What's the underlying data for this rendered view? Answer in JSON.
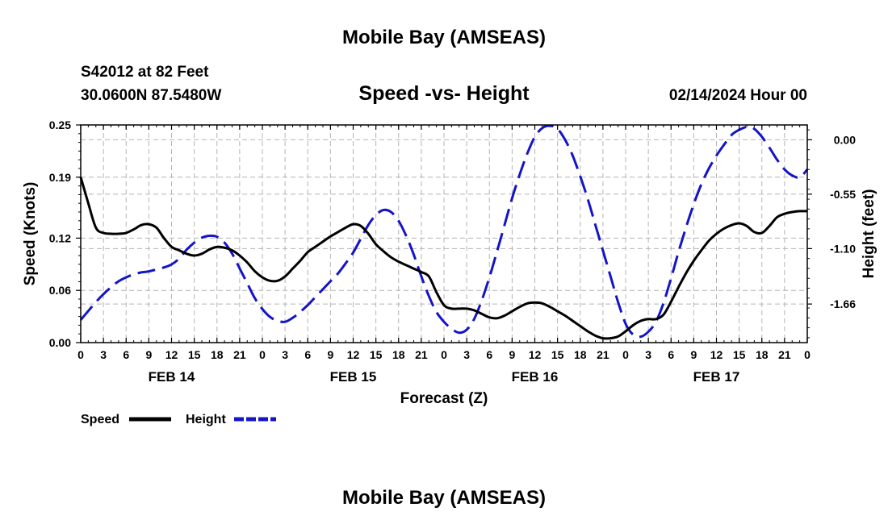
{
  "chart_data": {
    "type": "line",
    "title": "Mobile Bay (AMSEAS)",
    "station": "S42012 at 82 Feet",
    "location": "30.0600N  87.5480W",
    "subtitle": "Speed -vs- Height",
    "run_time": "02/14/2024 Hour 00",
    "xlabel": "Forecast (Z)",
    "ylabel_left": "Speed (Knots)",
    "ylabel_right": "Height (feet)",
    "x_hours_range": [
      0,
      96
    ],
    "x_tick_labels": [
      "0",
      "3",
      "6",
      "9",
      "12",
      "15",
      "18",
      "21",
      "0",
      "3",
      "6",
      "9",
      "12",
      "15",
      "18",
      "21",
      "0",
      "3",
      "6",
      "9",
      "12",
      "15",
      "18",
      "21",
      "0",
      "3",
      "6",
      "9",
      "12",
      "15",
      "18",
      "21",
      "0"
    ],
    "day_labels": [
      {
        "label": "FEB 14",
        "hour": 12
      },
      {
        "label": "FEB 15",
        "hour": 36
      },
      {
        "label": "FEB 16",
        "hour": 60
      },
      {
        "label": "FEB 17",
        "hour": 84
      }
    ],
    "y_left_ticks": [
      "0.00",
      "0.06",
      "0.12",
      "0.19",
      "0.25"
    ],
    "y_left_range": [
      0,
      0.25
    ],
    "y_right_ticks": [
      "0.00",
      "-0.55",
      "-1.10",
      "-1.66"
    ],
    "y_right_range": [
      -2.05,
      0.15
    ],
    "grid": true,
    "legend_position": "bottom-left",
    "series": [
      {
        "name": "Speed",
        "color": "#000000",
        "axis": "left",
        "style": "solid",
        "x": [
          0,
          1,
          2,
          3,
          4,
          5,
          6,
          7,
          8,
          9,
          10,
          11,
          12,
          13,
          14,
          15,
          16,
          17,
          18,
          19,
          20,
          21,
          22,
          23,
          24,
          25,
          26,
          27,
          28,
          29,
          30,
          31,
          32,
          33,
          34,
          35,
          36,
          37,
          38,
          39,
          40,
          41,
          42,
          43,
          44,
          45,
          46,
          47,
          48,
          49,
          50,
          51,
          52,
          53,
          54,
          55,
          56,
          57,
          58,
          59,
          60,
          61,
          62,
          63,
          64,
          65,
          66,
          67,
          68,
          69,
          70,
          71,
          72,
          73,
          74,
          75,
          76,
          77,
          78,
          79,
          80,
          81,
          82,
          83,
          84,
          85,
          86,
          87,
          88,
          89,
          90,
          91,
          92,
          93,
          94,
          95,
          96
        ],
        "y": [
          0.19,
          0.16,
          0.132,
          0.126,
          0.125,
          0.125,
          0.126,
          0.13,
          0.135,
          0.136,
          0.132,
          0.12,
          0.11,
          0.106,
          0.102,
          0.1,
          0.102,
          0.107,
          0.11,
          0.109,
          0.106,
          0.1,
          0.092,
          0.082,
          0.075,
          0.071,
          0.071,
          0.076,
          0.085,
          0.094,
          0.104,
          0.11,
          0.116,
          0.122,
          0.127,
          0.132,
          0.136,
          0.134,
          0.125,
          0.113,
          0.105,
          0.098,
          0.093,
          0.089,
          0.085,
          0.081,
          0.076,
          0.058,
          0.043,
          0.039,
          0.039,
          0.039,
          0.037,
          0.033,
          0.029,
          0.028,
          0.031,
          0.036,
          0.041,
          0.045,
          0.046,
          0.045,
          0.041,
          0.036,
          0.031,
          0.025,
          0.019,
          0.013,
          0.008,
          0.005,
          0.005,
          0.007,
          0.013,
          0.02,
          0.025,
          0.027,
          0.027,
          0.032,
          0.047,
          0.064,
          0.08,
          0.094,
          0.106,
          0.117,
          0.125,
          0.131,
          0.135,
          0.137,
          0.134,
          0.127,
          0.126,
          0.134,
          0.144,
          0.148,
          0.15,
          0.151,
          0.151
        ]
      },
      {
        "name": "Height",
        "color": "#1414c8",
        "axis": "right",
        "style": "dashed",
        "x": [
          0,
          1,
          2,
          3,
          4,
          5,
          6,
          7,
          8,
          9,
          10,
          11,
          12,
          13,
          14,
          15,
          16,
          17,
          18,
          19,
          20,
          21,
          22,
          23,
          24,
          25,
          26,
          27,
          28,
          29,
          30,
          31,
          32,
          33,
          34,
          35,
          36,
          37,
          38,
          39,
          40,
          41,
          42,
          43,
          44,
          45,
          46,
          47,
          48,
          49,
          50,
          51,
          52,
          53,
          54,
          55,
          56,
          57,
          58,
          59,
          60,
          61,
          62,
          63,
          64,
          65,
          66,
          67,
          68,
          69,
          70,
          71,
          72,
          73,
          74,
          75,
          76,
          77,
          78,
          79,
          80,
          81,
          82,
          83,
          84,
          85,
          86,
          87,
          88,
          89,
          90,
          91,
          92,
          93,
          94,
          95,
          96
        ],
        "y": [
          -1.82,
          -1.73,
          -1.64,
          -1.56,
          -1.49,
          -1.43,
          -1.39,
          -1.36,
          -1.34,
          -1.33,
          -1.31,
          -1.29,
          -1.26,
          -1.2,
          -1.11,
          -1.04,
          -0.99,
          -0.97,
          -0.98,
          -1.04,
          -1.15,
          -1.3,
          -1.45,
          -1.6,
          -1.71,
          -1.79,
          -1.83,
          -1.84,
          -1.8,
          -1.74,
          -1.67,
          -1.59,
          -1.51,
          -1.43,
          -1.35,
          -1.25,
          -1.14,
          -1.0,
          -0.86,
          -0.76,
          -0.71,
          -0.73,
          -0.82,
          -0.97,
          -1.16,
          -1.38,
          -1.58,
          -1.74,
          -1.84,
          -1.91,
          -1.95,
          -1.92,
          -1.81,
          -1.62,
          -1.39,
          -1.13,
          -0.86,
          -0.59,
          -0.35,
          -0.14,
          0.03,
          0.12,
          0.15,
          0.11,
          0.0,
          -0.16,
          -0.37,
          -0.6,
          -0.86,
          -1.12,
          -1.38,
          -1.64,
          -1.86,
          -1.97,
          -1.99,
          -1.94,
          -1.84,
          -1.65,
          -1.4,
          -1.13,
          -0.88,
          -0.65,
          -0.45,
          -0.29,
          -0.16,
          -0.05,
          0.05,
          0.1,
          0.13,
          0.11,
          0.03,
          -0.08,
          -0.2,
          -0.3,
          -0.36,
          -0.38,
          -0.3
        ]
      }
    ]
  }
}
